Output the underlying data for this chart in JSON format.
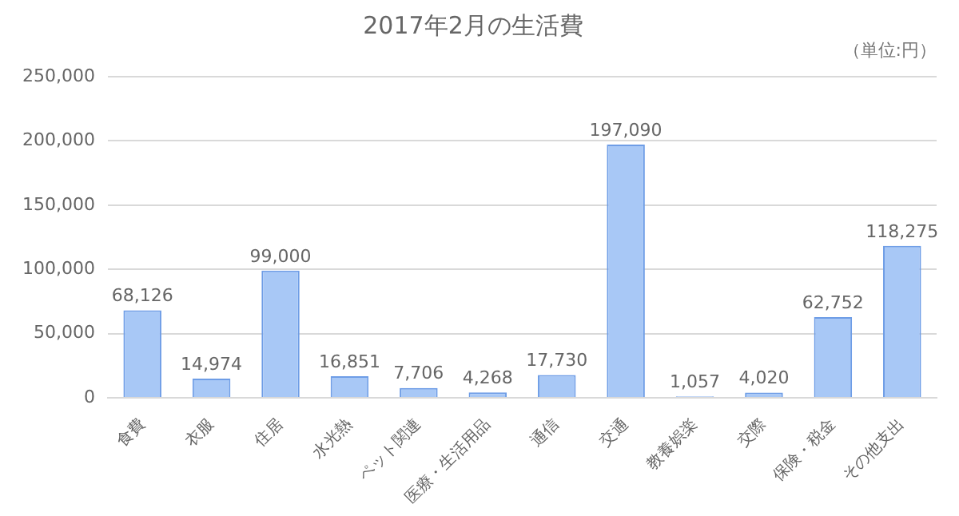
{
  "chart_data": {
    "type": "bar",
    "title": "2017年2月の生活費",
    "annotations": [
      "（単位:円）"
    ],
    "categories": [
      "食費",
      "衣服",
      "住居",
      "水光熱",
      "ペット関連",
      "医療・生活用品",
      "通信",
      "交通",
      "教養娯楽",
      "交際",
      "保険・税金",
      "その他支出"
    ],
    "values": [
      68126,
      14974,
      99000,
      16851,
      7706,
      4268,
      17730,
      197090,
      1057,
      4020,
      62752,
      118275
    ],
    "value_labels": [
      "68,126",
      "14,974",
      "99,000",
      "16,851",
      "7,706",
      "4,268",
      "17,730",
      "197,090",
      "1,057",
      "4,020",
      "62,752",
      "118,275"
    ],
    "color": "#a8c8f6",
    "ylim": [
      0,
      250000
    ],
    "yticks": [
      0,
      {
        "value": 50000,
        "label": "50,000"
      },
      {
        "value": 100000,
        "label": "100,000"
      },
      {
        "value": 150000,
        "label": "150,000"
      },
      {
        "value": 200000,
        "label": "200,000"
      },
      {
        "value": 250000,
        "label": "250,000"
      }
    ],
    "grid": "y",
    "legend": false
  }
}
